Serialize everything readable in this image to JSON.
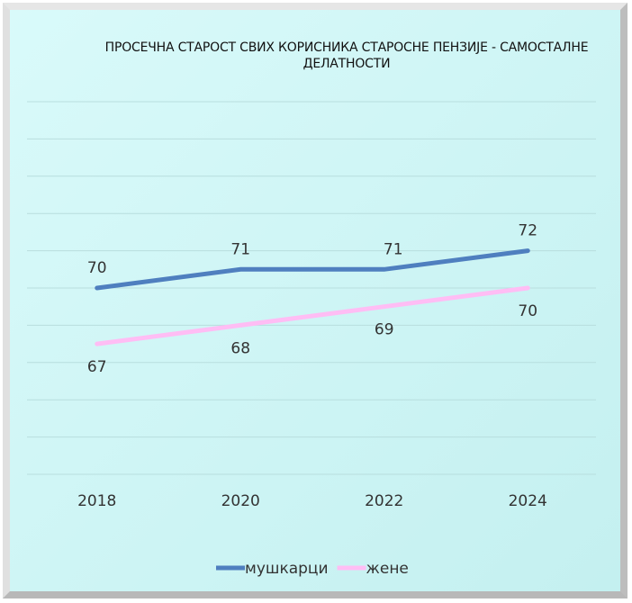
{
  "chart_data": {
    "type": "line",
    "title": "ПРОСЕЧНА СТАРОСТ СВИХ КОРИСНИКА СТАРОСНЕ ПЕНЗИЈЕ - САМОСТАЛНЕ ДЕЛАТНОСТИ",
    "categories": [
      "2018",
      "2020",
      "2022",
      "2024"
    ],
    "series": [
      {
        "name": "мушкарци",
        "color": "#4f7fbf",
        "values": [
          70,
          71,
          71,
          72
        ]
      },
      {
        "name": "жене",
        "color": "#ffbdf4",
        "values": [
          67,
          68,
          69,
          70
        ]
      }
    ],
    "ylim": [
      60,
      80
    ],
    "yticks": [
      60,
      62,
      64,
      66,
      68,
      70,
      72,
      74,
      76,
      78,
      80
    ],
    "grid": true,
    "legend": "bottom"
  }
}
